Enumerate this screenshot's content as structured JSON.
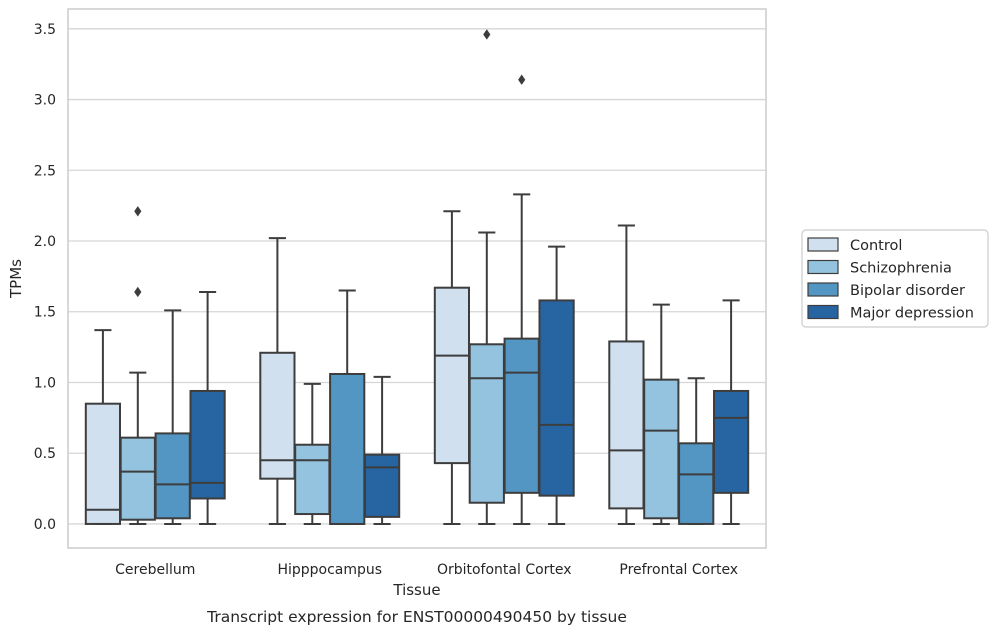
{
  "chart_data": {
    "type": "boxplot",
    "title": "",
    "caption": "Transcript expression for ENST00000490450 by tissue",
    "xlabel": "Tissue",
    "ylabel": "TPMs",
    "ylim": [
      -0.17,
      3.64
    ],
    "yticks": [
      0.0,
      0.5,
      1.0,
      1.5,
      2.0,
      2.5,
      3.0,
      3.5
    ],
    "ytick_labels": [
      "0.0",
      "0.5",
      "1.0",
      "1.5",
      "2.0",
      "2.5",
      "3.0",
      "3.5"
    ],
    "grid": "y",
    "legend_placement": "outside-right",
    "categories": [
      "Cerebellum",
      "Hipppocampus",
      "Orbitofontal Cortex",
      "Prefrontal Cortex"
    ],
    "series": [
      {
        "name": "Control",
        "color": "#d0e0ef",
        "boxes": [
          {
            "whislo": 0.0,
            "q1": 0.0,
            "med": 0.1,
            "q3": 0.85,
            "whishi": 1.37,
            "fliers": []
          },
          {
            "whislo": 0.0,
            "q1": 0.32,
            "med": 0.45,
            "q3": 1.21,
            "whishi": 2.02,
            "fliers": []
          },
          {
            "whislo": 0.0,
            "q1": 0.43,
            "med": 1.19,
            "q3": 1.67,
            "whishi": 2.21,
            "fliers": []
          },
          {
            "whislo": 0.0,
            "q1": 0.11,
            "med": 0.52,
            "q3": 1.29,
            "whishi": 2.11,
            "fliers": []
          }
        ]
      },
      {
        "name": "Schizophrenia",
        "color": "#93c3df",
        "boxes": [
          {
            "whislo": 0.0,
            "q1": 0.03,
            "med": 0.37,
            "q3": 0.61,
            "whishi": 1.07,
            "fliers": [
              1.64,
              2.21
            ]
          },
          {
            "whislo": 0.0,
            "q1": 0.07,
            "med": 0.45,
            "q3": 0.56,
            "whishi": 0.99,
            "fliers": []
          },
          {
            "whislo": 0.0,
            "q1": 0.15,
            "med": 1.03,
            "q3": 1.27,
            "whishi": 2.06,
            "fliers": [
              3.46
            ]
          },
          {
            "whislo": 0.0,
            "q1": 0.04,
            "med": 0.66,
            "q3": 1.02,
            "whishi": 1.55,
            "fliers": []
          }
        ]
      },
      {
        "name": "Bipolar disorder",
        "color": "#5496c3",
        "boxes": [
          {
            "whislo": 0.0,
            "q1": 0.04,
            "med": 0.28,
            "q3": 0.64,
            "whishi": 1.51,
            "fliers": []
          },
          {
            "whislo": 0.0,
            "q1": 0.0,
            "med": 0.0,
            "q3": 1.06,
            "whishi": 1.65,
            "fliers": []
          },
          {
            "whislo": 0.0,
            "q1": 0.22,
            "med": 1.07,
            "q3": 1.31,
            "whishi": 2.33,
            "fliers": [
              3.14
            ]
          },
          {
            "whislo": 0.0,
            "q1": 0.0,
            "med": 0.35,
            "q3": 0.57,
            "whishi": 1.03,
            "fliers": []
          }
        ]
      },
      {
        "name": "Major depression",
        "color": "#2664a2",
        "boxes": [
          {
            "whislo": 0.0,
            "q1": 0.18,
            "med": 0.29,
            "q3": 0.94,
            "whishi": 1.64,
            "fliers": []
          },
          {
            "whislo": 0.0,
            "q1": 0.05,
            "med": 0.4,
            "q3": 0.49,
            "whishi": 1.04,
            "fliers": []
          },
          {
            "whislo": 0.0,
            "q1": 0.2,
            "med": 0.7,
            "q3": 1.58,
            "whishi": 1.96,
            "fliers": []
          },
          {
            "whislo": 0.0,
            "q1": 0.22,
            "med": 0.75,
            "q3": 0.94,
            "whishi": 1.58,
            "fliers": []
          }
        ]
      }
    ]
  }
}
